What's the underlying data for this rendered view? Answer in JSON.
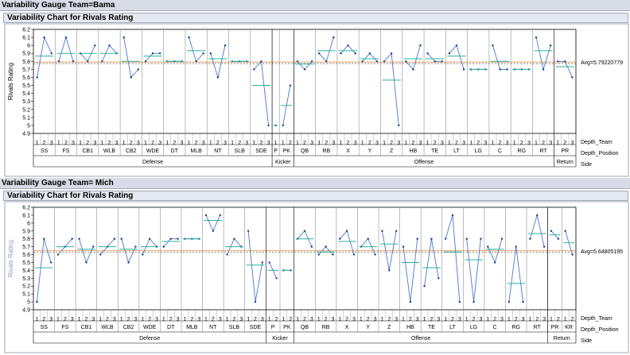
{
  "reports": [
    {
      "title": "Variability Gauge Team=Bama",
      "chart_title": "Variability Chart for Rivals Rating",
      "ylabel": "Rivals Rating",
      "avg_label": "Avg=5.79220779",
      "row_labels": [
        "Depth_Team",
        "Depth_Position",
        "Side"
      ],
      "yticks": [
        "6.2",
        "6.1",
        "6",
        "5.9",
        "5.8",
        "5.7",
        "5.6",
        "5.5",
        "5.4",
        "5.3",
        "5.2",
        "5.1",
        "5",
        "4.9"
      ]
    },
    {
      "title": "Variability Gauge Team= Mich",
      "chart_title": "Variability Chart for Rivals Rating",
      "ylabel": "Rivals Rating",
      "avg_label": "Avg=5.64805195",
      "row_labels": [
        "Depth_Team",
        "Depth_Position",
        "Side"
      ],
      "yticks": [
        "6.2",
        "6.1",
        "6",
        "5.9",
        "5.8",
        "5.7",
        "5.6",
        "5.5",
        "5.4",
        "5.3",
        "5.2",
        "5.1",
        "5",
        "4.9"
      ]
    }
  ],
  "colors": {
    "line": "#4a78c8",
    "group_mean": "#2ab0a0",
    "overall_avg": "#e08030",
    "point": "#1a3a80",
    "grid": "#909090"
  },
  "chart_data": [
    {
      "type": "line",
      "title": "Variability Chart for Rivals Rating",
      "ylabel": "Rivals Rating",
      "ylim": [
        4.9,
        6.2
      ],
      "overall_average": 5.79220779,
      "sides": [
        {
          "name": "Defense",
          "positions": [
            "SS",
            "FS",
            "CB1",
            "WLB",
            "CB2",
            "WDE",
            "DT",
            "MLB",
            "NT",
            "SLB",
            "SDE"
          ]
        },
        {
          "name": "Kicker",
          "positions": [
            "P",
            "PK"
          ]
        },
        {
          "name": "Offense",
          "positions": [
            "QB",
            "RB",
            "X",
            "Y",
            "Z",
            "HB",
            "TE",
            "LT",
            "LG",
            "C",
            "RG",
            "RT"
          ]
        },
        {
          "name": "Return",
          "positions": [
            "PR"
          ]
        }
      ],
      "groups": [
        {
          "position": "SS",
          "depth": [
            "1",
            "2",
            "3"
          ],
          "values": [
            5.6,
            6.1,
            5.9
          ]
        },
        {
          "position": "FS",
          "depth": [
            "1",
            "2",
            "3"
          ],
          "values": [
            5.8,
            6.1,
            5.8
          ]
        },
        {
          "position": "CB1",
          "depth": [
            "1",
            "2",
            "3"
          ],
          "values": [
            5.9,
            5.8,
            6.0
          ]
        },
        {
          "position": "WLB",
          "depth": [
            "1",
            "2",
            "3"
          ],
          "values": [
            5.8,
            6.0,
            5.9
          ]
        },
        {
          "position": "CB2",
          "depth": [
            "1",
            "2",
            "3"
          ],
          "values": [
            6.1,
            5.6,
            5.7
          ]
        },
        {
          "position": "WDE",
          "depth": [
            "1",
            "2",
            "3"
          ],
          "values": [
            5.8,
            5.9,
            5.9
          ]
        },
        {
          "position": "DT",
          "depth": [
            "1",
            "2",
            "3"
          ],
          "values": [
            5.8,
            5.8,
            5.8
          ]
        },
        {
          "position": "MLB",
          "depth": [
            "1",
            "2",
            "3"
          ],
          "values": [
            6.1,
            5.8,
            5.9
          ]
        },
        {
          "position": "NT",
          "depth": [
            "1",
            "2",
            "3"
          ],
          "values": [
            5.9,
            5.6,
            6.0
          ]
        },
        {
          "position": "SLB",
          "depth": [
            "1",
            "2",
            "3"
          ],
          "values": [
            5.8,
            5.8,
            5.8
          ]
        },
        {
          "position": "SDE",
          "depth": [
            "1",
            "2",
            "3"
          ],
          "values": [
            5.7,
            5.8,
            5.0
          ]
        },
        {
          "position": "P",
          "depth": [
            "1"
          ],
          "values": [
            5.0
          ]
        },
        {
          "position": "PK",
          "depth": [
            "1",
            "2"
          ],
          "values": [
            5.0,
            5.5
          ]
        },
        {
          "position": "QB",
          "depth": [
            "1",
            "2",
            "3"
          ],
          "values": [
            5.8,
            5.7,
            5.8
          ]
        },
        {
          "position": "RB",
          "depth": [
            "1",
            "2",
            "3"
          ],
          "values": [
            5.9,
            5.8,
            6.1
          ]
        },
        {
          "position": "X",
          "depth": [
            "1",
            "2",
            "3"
          ],
          "values": [
            5.9,
            6.0,
            5.9
          ]
        },
        {
          "position": "Y",
          "depth": [
            "1",
            "2",
            "3"
          ],
          "values": [
            5.8,
            5.9,
            5.8
          ]
        },
        {
          "position": "Z",
          "depth": [
            "1",
            "2",
            "3"
          ],
          "values": [
            5.8,
            5.9,
            5.0
          ]
        },
        {
          "position": "HB",
          "depth": [
            "1",
            "2",
            "3"
          ],
          "values": [
            5.8,
            5.7,
            6.0
          ]
        },
        {
          "position": "TE",
          "depth": [
            "1",
            "2",
            "3"
          ],
          "values": [
            5.9,
            5.8,
            5.8
          ]
        },
        {
          "position": "LT",
          "depth": [
            "1",
            "2",
            "3"
          ],
          "values": [
            5.9,
            6.0,
            5.7
          ]
        },
        {
          "position": "LG",
          "depth": [
            "1",
            "2",
            "3"
          ],
          "values": [
            5.7,
            5.7,
            5.7
          ]
        },
        {
          "position": "C",
          "depth": [
            "1",
            "2",
            "3"
          ],
          "values": [
            6.0,
            5.7,
            5.7
          ]
        },
        {
          "position": "RG",
          "depth": [
            "1",
            "2",
            "3"
          ],
          "values": [
            5.7,
            5.7,
            5.7
          ]
        },
        {
          "position": "RT",
          "depth": [
            "1",
            "2",
            "3"
          ],
          "values": [
            6.1,
            5.7,
            6.0
          ]
        },
        {
          "position": "PR",
          "depth": [
            "1",
            "2",
            "3"
          ],
          "values": [
            5.8,
            5.8,
            5.6
          ]
        }
      ]
    },
    {
      "type": "line",
      "title": "Variability Chart for Rivals Rating",
      "ylabel": "Rivals Rating",
      "ylim": [
        4.9,
        6.2
      ],
      "overall_average": 5.64805195,
      "sides": [
        {
          "name": "Defense",
          "positions": [
            "SS",
            "FS",
            "CB1",
            "WLB",
            "CB2",
            "WDE",
            "DT",
            "MLB",
            "NT",
            "SLB",
            "SDE"
          ]
        },
        {
          "name": "Kicker",
          "positions": [
            "P",
            "PK"
          ]
        },
        {
          "name": "Offense",
          "positions": [
            "QB",
            "RB",
            "X",
            "Y",
            "Z",
            "HB",
            "TE",
            "LT",
            "LG",
            "C",
            "RG",
            "RT"
          ]
        },
        {
          "name": "Return",
          "positions": [
            "PR",
            "KR"
          ]
        }
      ],
      "groups": [
        {
          "position": "SS",
          "depth": [
            "1",
            "2",
            "3"
          ],
          "values": [
            5.0,
            5.8,
            5.5
          ]
        },
        {
          "position": "FS",
          "depth": [
            "1",
            "2",
            "3"
          ],
          "values": [
            5.6,
            5.7,
            5.8
          ]
        },
        {
          "position": "CB1",
          "depth": [
            "1",
            "2",
            "3"
          ],
          "values": [
            5.8,
            5.5,
            5.7
          ]
        },
        {
          "position": "WLB",
          "depth": [
            "1",
            "2",
            "3"
          ],
          "values": [
            5.6,
            5.7,
            5.8
          ]
        },
        {
          "position": "CB2",
          "depth": [
            "1",
            "2",
            "3"
          ],
          "values": [
            5.8,
            5.5,
            5.7
          ]
        },
        {
          "position": "WDE",
          "depth": [
            "1",
            "2",
            "3"
          ],
          "values": [
            5.6,
            5.8,
            5.7
          ]
        },
        {
          "position": "DT",
          "depth": [
            "1",
            "2",
            "3"
          ],
          "values": [
            5.7,
            5.8,
            5.8
          ]
        },
        {
          "position": "MLB",
          "depth": [
            "1",
            "2",
            "3"
          ],
          "values": [
            5.8,
            5.8,
            5.8
          ]
        },
        {
          "position": "NT",
          "depth": [
            "1",
            "2",
            "3"
          ],
          "values": [
            6.1,
            5.9,
            6.1
          ]
        },
        {
          "position": "SLB",
          "depth": [
            "1",
            "2",
            "3"
          ],
          "values": [
            5.6,
            5.8,
            5.7
          ]
        },
        {
          "position": "SDE",
          "depth": [
            "1",
            "2",
            "3"
          ],
          "values": [
            5.9,
            5.0,
            5.5
          ]
        },
        {
          "position": "P",
          "depth": [
            "1",
            "2"
          ],
          "values": [
            5.5,
            5.3
          ]
        },
        {
          "position": "PK",
          "depth": [
            "1",
            "2"
          ],
          "values": [
            5.4,
            5.4
          ]
        },
        {
          "position": "QB",
          "depth": [
            "1",
            "2",
            "3"
          ],
          "values": [
            5.8,
            5.9,
            5.7
          ]
        },
        {
          "position": "RB",
          "depth": [
            "1",
            "2",
            "3"
          ],
          "values": [
            5.6,
            5.7,
            5.6
          ]
        },
        {
          "position": "X",
          "depth": [
            "1",
            "2",
            "3"
          ],
          "values": [
            5.8,
            5.9,
            5.6
          ]
        },
        {
          "position": "Y",
          "depth": [
            "1",
            "2",
            "3"
          ],
          "values": [
            5.7,
            5.8,
            5.6
          ]
        },
        {
          "position": "Z",
          "depth": [
            "1",
            "2",
            "3"
          ],
          "values": [
            5.9,
            5.4,
            5.9
          ]
        },
        {
          "position": "HB",
          "depth": [
            "1",
            "2",
            "3"
          ],
          "values": [
            5.7,
            5.0,
            5.8
          ]
        },
        {
          "position": "TE",
          "depth": [
            "1",
            "2",
            "3"
          ],
          "values": [
            5.2,
            5.8,
            5.3
          ]
        },
        {
          "position": "LT",
          "depth": [
            "1",
            "2",
            "3"
          ],
          "values": [
            5.8,
            6.1,
            5.0
          ]
        },
        {
          "position": "LG",
          "depth": [
            "1",
            "2",
            "3"
          ],
          "values": [
            5.8,
            5.0,
            5.8
          ]
        },
        {
          "position": "C",
          "depth": [
            "1",
            "2",
            "3"
          ],
          "values": [
            5.7,
            5.5,
            5.8
          ]
        },
        {
          "position": "RG",
          "depth": [
            "1",
            "2",
            "3"
          ],
          "values": [
            5.0,
            5.7,
            5.0
          ]
        },
        {
          "position": "RT",
          "depth": [
            "1",
            "2",
            "3"
          ],
          "values": [
            5.8,
            6.1,
            5.7
          ]
        },
        {
          "position": "PR",
          "depth": [
            "1",
            "2"
          ],
          "values": [
            5.9,
            5.8
          ]
        },
        {
          "position": "KR",
          "depth": [
            "1",
            "2"
          ],
          "values": [
            5.9,
            5.6
          ]
        }
      ]
    }
  ]
}
